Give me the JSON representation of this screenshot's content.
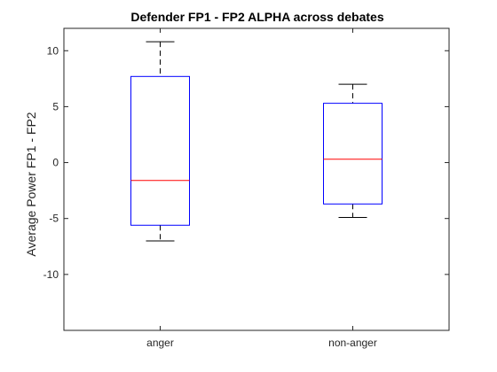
{
  "chart_data": {
    "type": "box",
    "title": "Defender FP1 - FP2 ALPHA across debates",
    "xlabel": "",
    "ylabel": "Average Power FP1 - FP2",
    "categories": [
      "anger",
      "non-anger"
    ],
    "boxes": [
      {
        "category": "anger",
        "whisker_low": -7.0,
        "q1": -5.6,
        "median": -1.6,
        "q3": 7.7,
        "whisker_high": 10.8
      },
      {
        "category": "non-anger",
        "whisker_low": -4.9,
        "q1": -3.7,
        "median": 0.3,
        "q3": 5.3,
        "whisker_high": 7.0
      }
    ],
    "ylim": [
      -15,
      12
    ],
    "yticks": [
      10,
      5,
      0,
      -5,
      -10
    ],
    "ytick_labels": [
      "10",
      "5",
      "0",
      "-5",
      "-10"
    ],
    "grid": false,
    "colors": {
      "box": "#0000ff",
      "median": "#ff0000",
      "whisker": "#000000",
      "axes": "#262626"
    }
  }
}
